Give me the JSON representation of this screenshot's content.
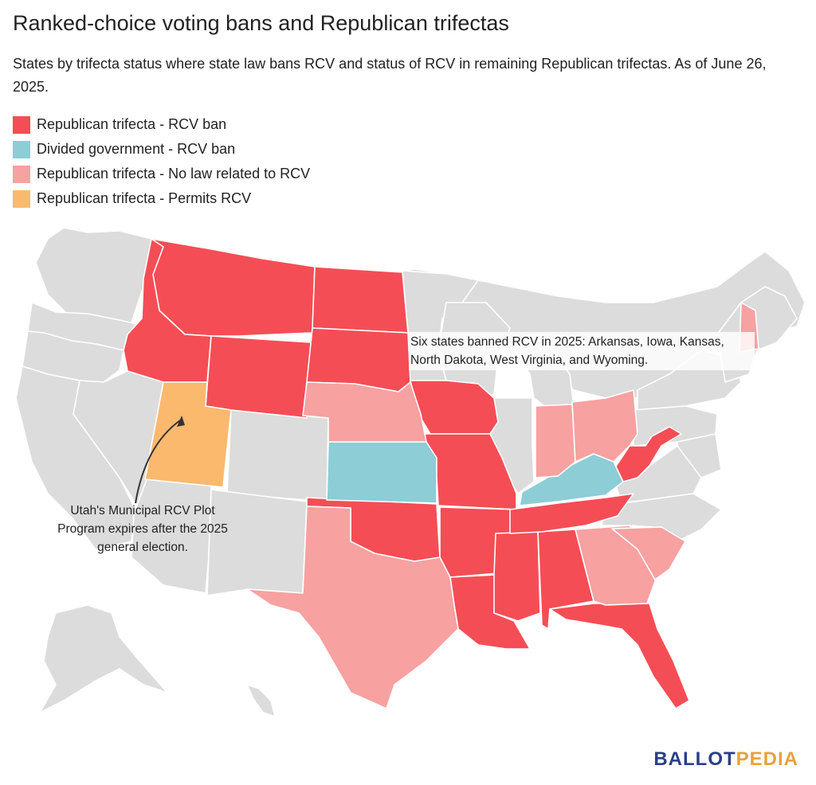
{
  "title": "Ranked-choice voting bans and Republican trifectas",
  "subtitle": "States by trifecta status where state law bans RCV and status of RCV in remaining Republican trifectas. As of June 26, 2025.",
  "legend": [
    {
      "label": "Republican trifecta - RCV ban",
      "color": "#f54d55"
    },
    {
      "label": "Divided government - RCV ban",
      "color": "#8ccdd6"
    },
    {
      "label": "Republican trifecta - No law related to RCV",
      "color": "#f7a1a1"
    },
    {
      "label": "Republican trifecta - Permits RCV",
      "color": "#fbb96e"
    }
  ],
  "other_state_color": "#dcdcdc",
  "annotations": {
    "top": "Six states banned RCV in 2025: Arkansas, Iowa, Kansas, North Dakota, West Virginia, and Wyoming.",
    "utah": "Utah's Municipal RCV Plot Program expires after the 2025 general election."
  },
  "state_categories": {
    "Republican trifecta - RCV ban": [
      "Montana",
      "Idaho",
      "Wyoming",
      "North Dakota",
      "South Dakota",
      "Iowa",
      "Missouri",
      "Oklahoma",
      "Arkansas",
      "Louisiana",
      "Mississippi",
      "Alabama",
      "Tennessee",
      "Florida",
      "West Virginia"
    ],
    "Divided government - RCV ban": [
      "Kansas",
      "Kentucky"
    ],
    "Republican trifecta - No law related to RCV": [
      "Nebraska",
      "Texas",
      "Indiana",
      "Ohio",
      "Georgia",
      "South Carolina",
      "New Hampshire"
    ],
    "Republican trifecta - Permits RCV": [
      "Utah"
    ]
  },
  "brand": {
    "part1": "BALLOT",
    "part2": "PEDIA",
    "color1": "#2a3f87",
    "color2": "#e6a23c"
  }
}
